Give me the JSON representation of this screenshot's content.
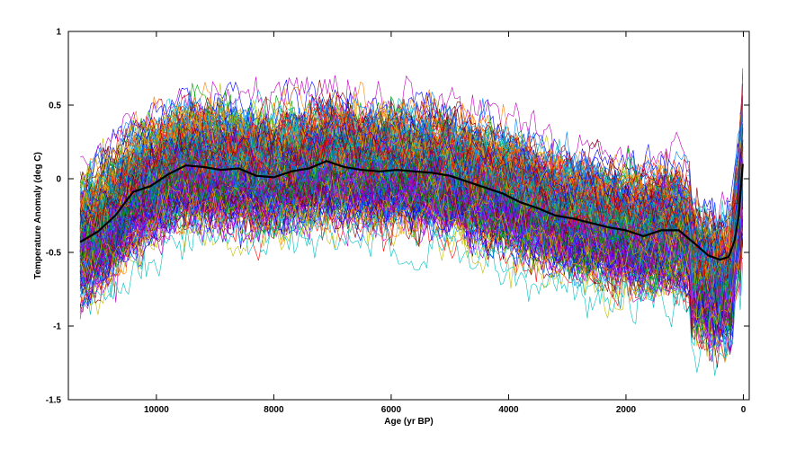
{
  "chart_data": {
    "type": "line",
    "title": "",
    "xlabel": "Age (yr BP)",
    "ylabel": "Temperature Anomaly (deg C)",
    "xlim": [
      11500,
      -100
    ],
    "ylim": [
      -1.5,
      1
    ],
    "x_reversed": true,
    "grid": false,
    "legend": "none",
    "xticks": [
      10000,
      8000,
      6000,
      4000,
      2000,
      0
    ],
    "yticks": [
      1,
      0.5,
      0,
      -0.5,
      -1,
      -1.5
    ],
    "xtick_labels": [
      "10000",
      "8000",
      "6000",
      "4000",
      "2000",
      "0"
    ],
    "ytick_labels": [
      "1",
      "0.5",
      "0",
      "-0.5",
      "-1",
      "-1.5"
    ],
    "mean_series": {
      "color": "#000000",
      "x": [
        11300,
        11000,
        10700,
        10400,
        10100,
        9800,
        9500,
        9200,
        8900,
        8600,
        8300,
        8000,
        7700,
        7400,
        7100,
        6800,
        6500,
        6200,
        5900,
        5600,
        5300,
        5000,
        4700,
        4400,
        4100,
        3800,
        3500,
        3200,
        2900,
        2600,
        2300,
        2000,
        1700,
        1400,
        1100,
        800,
        600,
        400,
        250,
        150,
        80,
        30,
        10
      ],
      "y": [
        -0.43,
        -0.36,
        -0.25,
        -0.09,
        -0.05,
        0.03,
        0.09,
        0.08,
        0.06,
        0.07,
        0.02,
        0.01,
        0.05,
        0.07,
        0.12,
        0.08,
        0.06,
        0.05,
        0.06,
        0.05,
        0.04,
        0.02,
        -0.02,
        -0.06,
        -0.1,
        -0.16,
        -0.2,
        -0.25,
        -0.27,
        -0.3,
        -0.33,
        -0.35,
        -0.39,
        -0.35,
        -0.35,
        -0.45,
        -0.52,
        -0.55,
        -0.53,
        -0.42,
        -0.25,
        0.0,
        0.1
      ]
    },
    "ensemble": {
      "description_count": 300,
      "mean_ref": "mean_series",
      "spread_y": 0.28,
      "palette": [
        "#0000ff",
        "#ff0000",
        "#00aa00",
        "#00bfbf",
        "#bf00bf",
        "#bfbf00",
        "#404040",
        "#ff8000",
        "#8000ff",
        "#008080",
        "#800000",
        "#0080ff"
      ]
    }
  }
}
